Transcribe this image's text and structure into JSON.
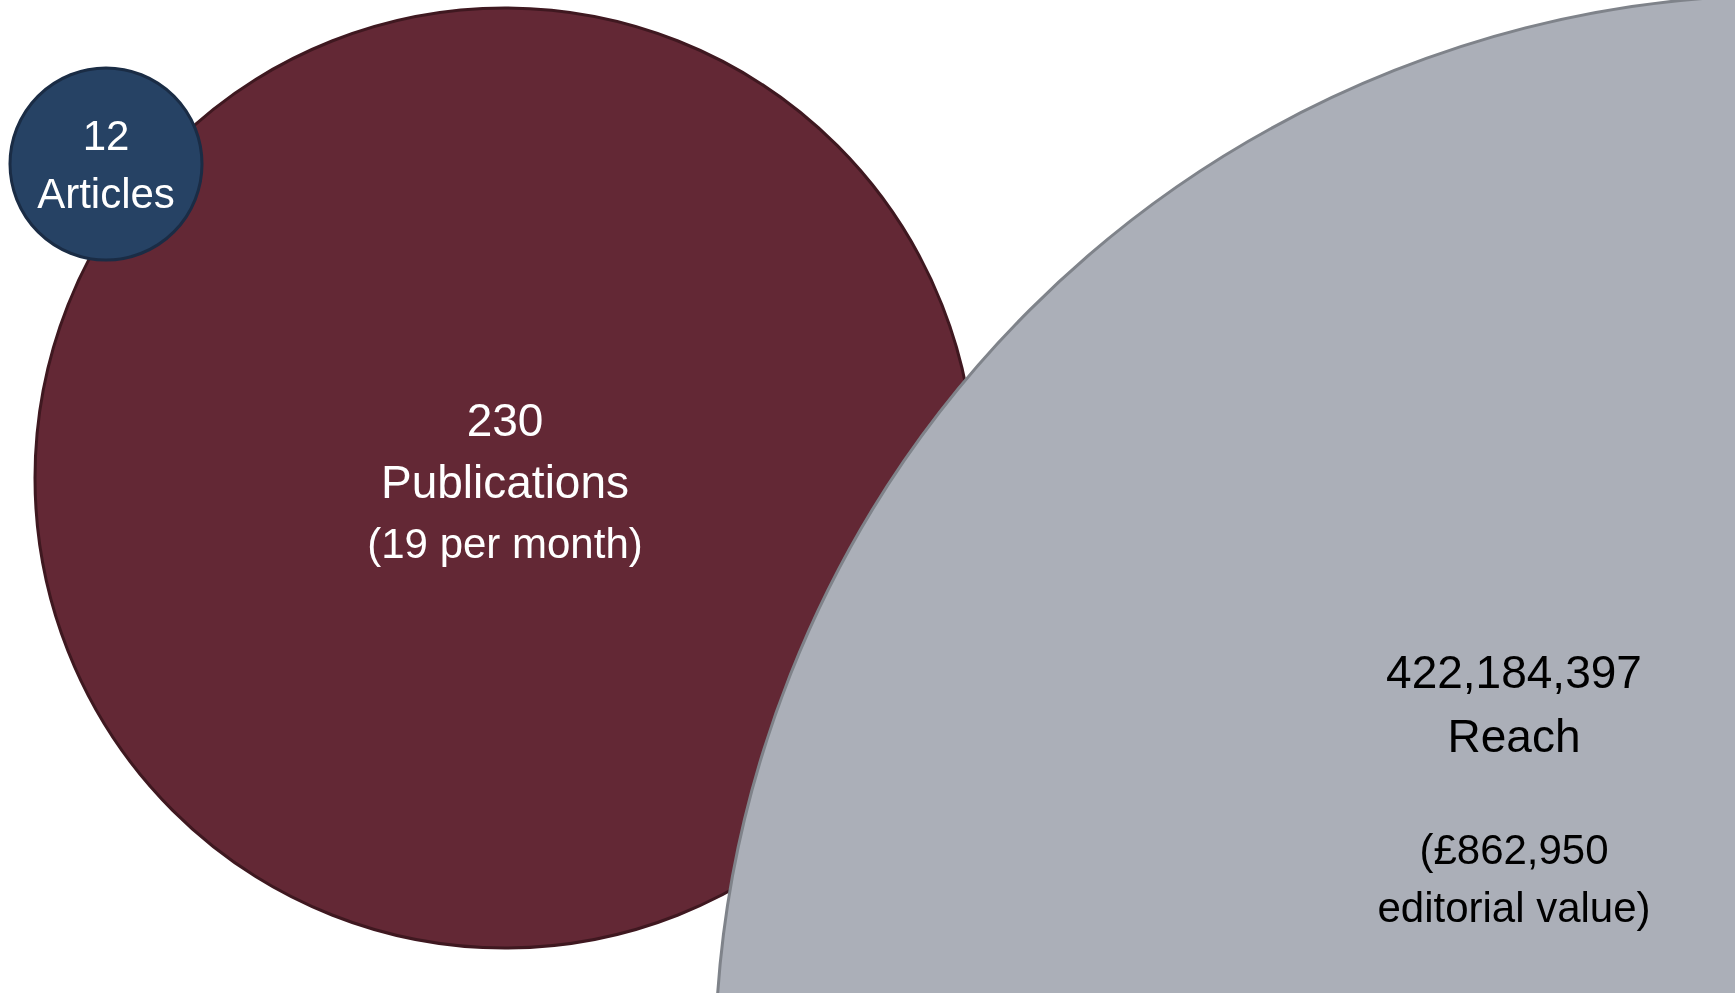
{
  "chart_data": {
    "type": "other",
    "categories": [
      "Articles",
      "Publications",
      "Reach"
    ],
    "values": [
      12,
      230,
      422184397
    ],
    "value_labels": [
      "12",
      "230",
      "422,184,397"
    ],
    "colors": [
      "#264264",
      "#632835",
      "#abafb8"
    ],
    "annotations": [
      {
        "text": "(19 per month)",
        "x": "Publications"
      },
      {
        "text": "(£862,950 editorial value)",
        "x": "Reach"
      }
    ]
  }
}
